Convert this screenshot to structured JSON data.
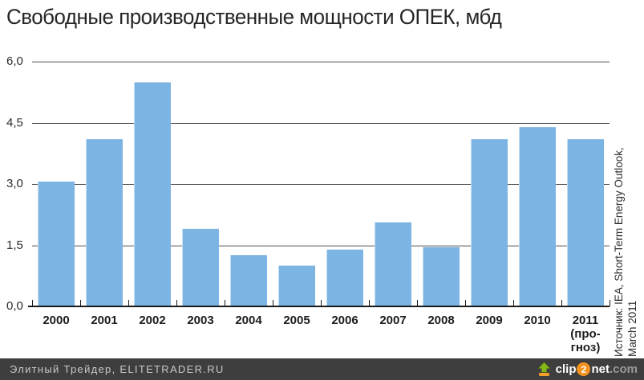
{
  "title": "Свободные производственные мощности ОПЕК, мбд",
  "source_note": {
    "line1": "Источник: IEA, Short-Term Energy Outlook,",
    "line2": "March 2011"
  },
  "footer": {
    "credit": "Элитный Трейдер, ELITETRADER.RU",
    "logo": {
      "clip": "clip",
      "two": "2",
      "net": "net",
      "com": ".com"
    }
  },
  "colors": {
    "bar": "#7cb5e3",
    "grid": "#4b4b4b",
    "axis": "#1a1a1a",
    "footer_bg": "#3e3e3e",
    "footer_text": "#c9c9c9",
    "logo_orange": "#f5921e",
    "logo_green": "#86b918"
  },
  "chart_data": {
    "type": "bar",
    "title": "Свободные производственные мощности ОПЕК, мбд",
    "categories": [
      "2000",
      "2001",
      "2002",
      "2003",
      "2004",
      "2005",
      "2006",
      "2007",
      "2008",
      "2009",
      "2010",
      "2011\n(про-\nгноз)"
    ],
    "values": [
      3.05,
      4.1,
      5.5,
      1.9,
      1.25,
      1.0,
      1.4,
      2.05,
      1.45,
      4.1,
      4.4,
      4.1
    ],
    "xlabel": "",
    "ylabel": "",
    "ylim": [
      0,
      6.0
    ],
    "yticks": [
      0.0,
      1.5,
      3.0,
      4.5,
      6.0
    ],
    "ytick_labels": [
      "0,0",
      "1,5",
      "3,0",
      "4,5",
      "6,0"
    ],
    "grid": true,
    "legend": false
  }
}
